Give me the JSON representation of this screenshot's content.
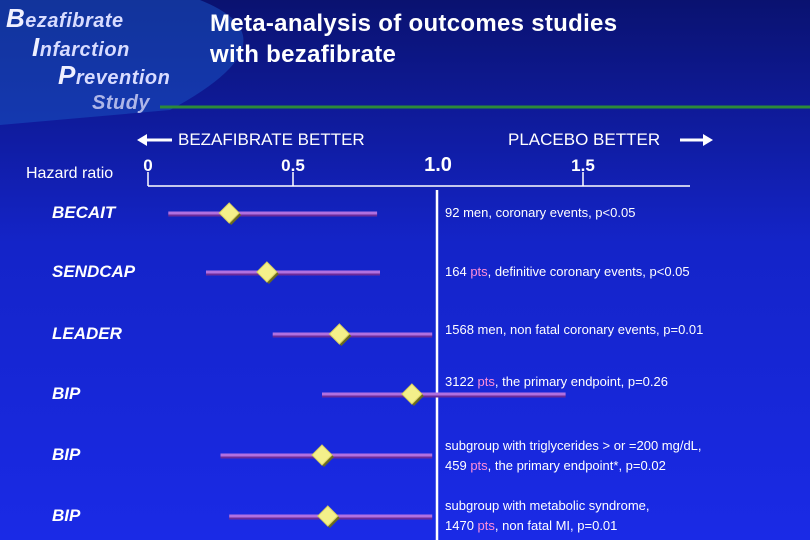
{
  "logo": {
    "words": [
      {
        "cap": "B",
        "rest": "ezafibrate"
      },
      {
        "cap": "I",
        "rest": "nfarction"
      },
      {
        "cap": "P",
        "rest": "revention"
      },
      {
        "cap": "",
        "rest": "Study"
      }
    ]
  },
  "title": {
    "line1": "Meta-analysis of outcomes studies",
    "line2": "with bezafibrate"
  },
  "axis": {
    "label": "Hazard ratio",
    "left_direction": "BEZAFIBRATE BETTER",
    "right_direction": "PLACEBO BETTER",
    "ticks": [
      {
        "value": 0,
        "label": "0"
      },
      {
        "value": 0.5,
        "label": "0.5"
      },
      {
        "value": 1.0,
        "label": "1.0"
      },
      {
        "value": 1.5,
        "label": "1.5"
      }
    ]
  },
  "chart_data": {
    "type": "forest",
    "xlabel": "Hazard ratio",
    "reference_line": 1.0,
    "xlim": [
      0,
      1.5
    ],
    "studies": [
      {
        "name": "BECAIT",
        "hr": 0.28,
        "ci": [
          0.07,
          0.79
        ],
        "num": "92",
        "desc_lines": [
          "men, coronary events, p<0.05"
        ]
      },
      {
        "name": "SENDCAP",
        "hr": 0.41,
        "ci": [
          0.2,
          0.8
        ],
        "num": "164",
        "pts": "pts",
        "desc_lines": [
          ", definitive coronary events, p<0.05"
        ]
      },
      {
        "name": "LEADER",
        "hr": 0.66,
        "ci": [
          0.43,
          0.98
        ],
        "num": "1568",
        "desc_lines": [
          "men, non fatal coronary events, p=0.01"
        ]
      },
      {
        "name": "BIP",
        "hr": 0.91,
        "ci": [
          0.6,
          1.44
        ],
        "num": "3122",
        "pts": "pts",
        "desc_lines": [
          ", the primary endpoint, p=0.26"
        ]
      },
      {
        "name": "BIP",
        "hr": 0.6,
        "ci": [
          0.25,
          0.98
        ],
        "pre": "subgroup with triglycerides > or =200 mg/dL,",
        "num": "459",
        "pts": "pts",
        "desc_lines": [
          ", the primary endpoint*, p=0.02"
        ]
      },
      {
        "name": "BIP",
        "hr": 0.62,
        "ci": [
          0.28,
          0.98
        ],
        "pre": "subgroup with metabolic syndrome,",
        "num": "1470",
        "pts": "pts",
        "desc_lines": [
          ", non fatal MI, p=0.01"
        ]
      }
    ]
  },
  "colors": {
    "bg_top": "#0a1270",
    "bg_bottom": "#1a2ae6",
    "ci_line": "#b070e0",
    "marker": "#f4f08a",
    "ref_line": "#ffffff",
    "deco_green": "#2c8a3a"
  }
}
